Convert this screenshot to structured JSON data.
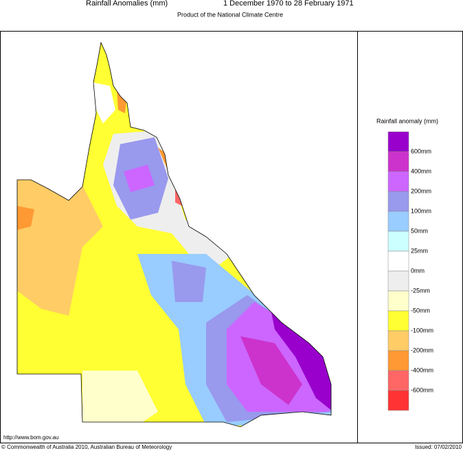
{
  "header": {
    "title": "Rainfall Anomalies (mm)",
    "period": "1 December 1970 to 28 February 1971",
    "subtitle": "Product of the National Climate Centre"
  },
  "legend": {
    "title": "Rainfall anomaly (mm)",
    "colors": [
      "#9900cc",
      "#cc33cc",
      "#cc66ff",
      "#9999ee",
      "#99ccff",
      "#ccffff",
      "#ffffff",
      "#eeeeee",
      "#ffffcc",
      "#ffff33",
      "#ffcc66",
      "#ff9933",
      "#ff6666",
      "#ff3333"
    ],
    "labels": [
      "600mm",
      "400mm",
      "200mm",
      "100mm",
      "50mm",
      "25mm",
      "0mm",
      "-25mm",
      "-50mm",
      "-100mm",
      "-200mm",
      "-400mm",
      "-600mm"
    ]
  },
  "footer": {
    "url": "http://www.bom.gov.au",
    "copyright": "© Commonwealth of Australia 2010, Australian Bureau of Meteorology",
    "issued": "Issued: 07/02/2010"
  }
}
